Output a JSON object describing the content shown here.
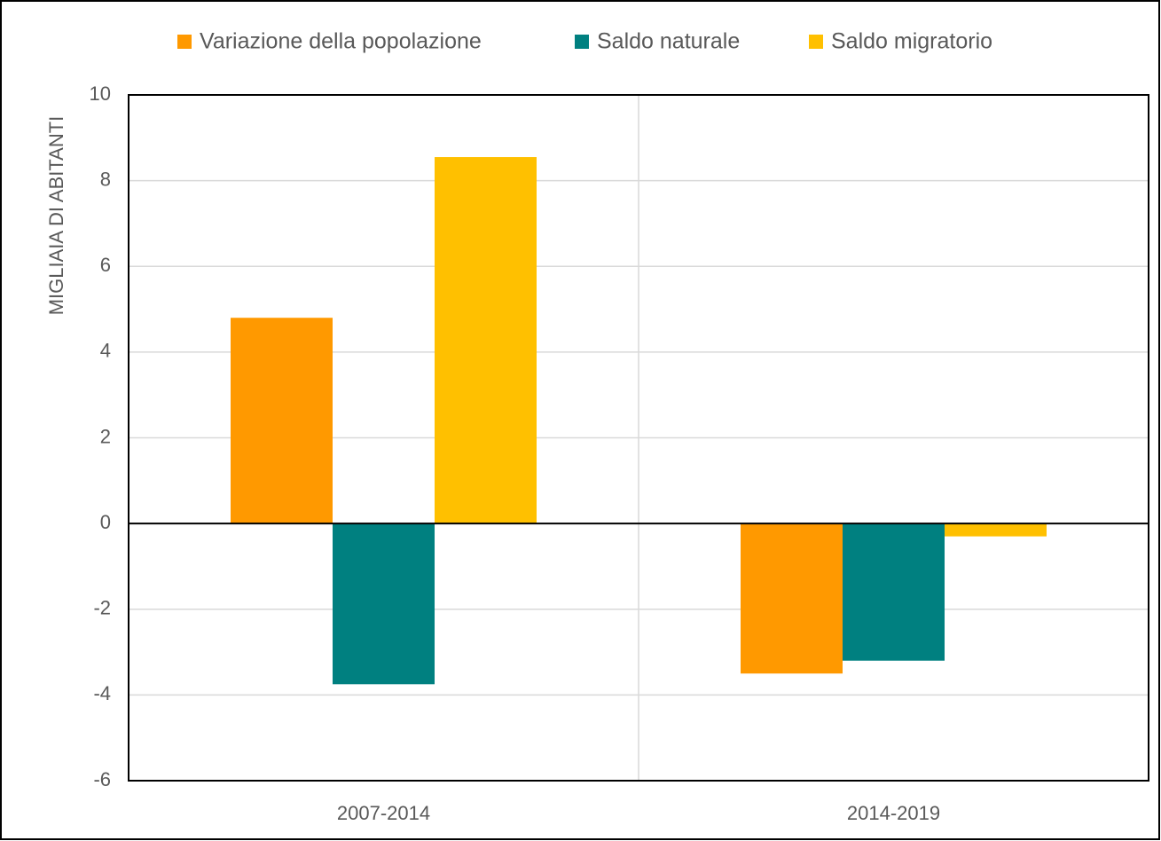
{
  "chart_data": {
    "type": "bar",
    "categories": [
      "2007-2014",
      "2014-2019"
    ],
    "series": [
      {
        "name": "Variazione della popolazione",
        "color": "#ff9900",
        "values": [
          4.8,
          -3.5
        ]
      },
      {
        "name": "Saldo naturale",
        "color": "#008080",
        "values": [
          -3.75,
          -3.2
        ]
      },
      {
        "name": "Saldo migratorio",
        "color": "#ffc000",
        "values": [
          8.55,
          -0.3
        ]
      }
    ],
    "y_axis_label": "MIGLIAIA DI ABITANTI",
    "ylim": [
      -6,
      10
    ],
    "yticks": [
      -6,
      -4,
      -2,
      0,
      2,
      4,
      6,
      8,
      10
    ],
    "grid": true,
    "legend": "top"
  }
}
